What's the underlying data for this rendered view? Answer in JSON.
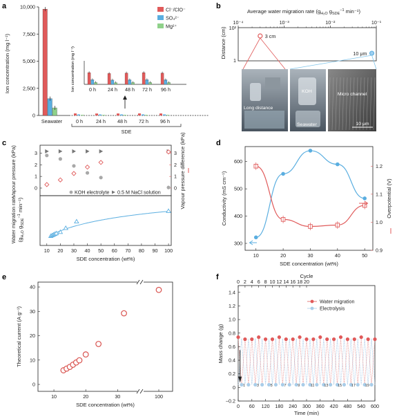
{
  "colors": {
    "red": "#e05a5a",
    "blue": "#5aaee0",
    "green": "#8fd18a",
    "gray": "#9a9a9a",
    "darkgray": "#6a6a6a"
  },
  "panels": {
    "a": {
      "label": "a"
    },
    "b": {
      "label": "b"
    },
    "c": {
      "label": "c"
    },
    "d": {
      "label": "d"
    },
    "e": {
      "label": "e"
    },
    "f": {
      "label": "f"
    }
  },
  "chart_data": [
    {
      "panel": "a",
      "type": "bar",
      "ylabel": "Ion concentration (mg l⁻¹)",
      "ylim": [
        0,
        10000
      ],
      "yticks": [
        "0",
        "2,500",
        "5,000",
        "7,500",
        "10,000"
      ],
      "categories": [
        "Seawater",
        "0 h",
        "24 h",
        "48 h",
        "72 h",
        "96 h"
      ],
      "group_label": "SDE",
      "legend": [
        "Cl⁻/ClO⁻",
        "SO₄²⁻",
        "Mg²⁺"
      ],
      "series": [
        {
          "name": "Cl⁻/ClO⁻",
          "values": [
            9800,
            150,
            140,
            145,
            150,
            145
          ]
        },
        {
          "name": "SO₄²⁻",
          "values": [
            1550,
            60,
            55,
            58,
            60,
            58
          ]
        },
        {
          "name": "Mg²⁺",
          "values": [
            700,
            25,
            22,
            24,
            25,
            23
          ]
        }
      ],
      "inset": {
        "ylabel": "Ion concentration (mg l⁻¹)",
        "categories": [
          "0 h",
          "24 h",
          "48 h",
          "72 h",
          "96 h"
        ]
      }
    },
    {
      "panel": "b",
      "type": "scatter",
      "top_axis_label": "Average water migration rate (g",
      "top_axis_sub": "H₂O",
      "top_axis_mid": " g",
      "top_axis_sub2": "SDE",
      "top_axis_sup": "−1",
      "top_axis_end": " min⁻¹)",
      "xticks": [
        "10⁻⁴",
        "10⁻³",
        "10⁻²",
        "10⁻¹"
      ],
      "ylabel": "Distance (cm)",
      "yticks": [
        "10²",
        "1"
      ],
      "points": [
        {
          "label": "3 cm",
          "x": 0.0003,
          "y": 3
        },
        {
          "label": "10 μm",
          "x": 0.08,
          "y": 0.001
        }
      ],
      "photo_labels": [
        "Long distance",
        "KOH",
        "Seawater",
        "Micro channel",
        "10 μm"
      ]
    },
    {
      "panel": "c",
      "type": "scatter",
      "xlabel": "SDE concentration (wt%)",
      "xticks": [
        "10",
        "20",
        "30",
        "40",
        "50",
        "60",
        "70",
        "80",
        "90",
        "100"
      ],
      "top": {
        "ylabel": "Vapour pressure (kPa)",
        "yticks": [
          "0",
          "1",
          "2",
          "3"
        ],
        "y2label": "Vapour pressure difference (kPa)",
        "y2ticks": [
          "0",
          "1",
          "2",
          "3"
        ],
        "legend": [
          "KOH electrolyte",
          "0.5 M NaCl solution"
        ],
        "series": [
          {
            "name": "KOH electrolyte",
            "x": [
              10,
              20,
              30,
              40,
              50,
              100
            ],
            "y": [
              2.8,
              2.5,
              1.9,
              1.3,
              0.9,
              0.05
            ]
          },
          {
            "name": "0.5 M NaCl solution",
            "x": [
              10,
              20,
              30,
              40,
              50,
              100
            ],
            "y": [
              3.15,
              3.15,
              3.15,
              3.15,
              3.15,
              3.15
            ]
          },
          {
            "name": "difference",
            "x": [
              10,
              20,
              30,
              40,
              50,
              100
            ],
            "y": [
              0.3,
              0.7,
              1.25,
              1.8,
              2.2,
              3.1
            ]
          }
        ]
      },
      "bottom": {
        "ylabel": "Water migration rate",
        "ylabel2": "(g",
        "ylabel_sub": "H₂O",
        "ylabel_mid": " g",
        "ylabel_sub2": "SDE",
        "ylabel_sup": "−1",
        "ylabel_end": " min⁻¹)",
        "series": [
          {
            "name": "water migration rate",
            "x": [
              13,
              14,
              15,
              16,
              17,
              20,
              24,
              32,
              100
            ],
            "y": [
              0.03,
              0.035,
              0.04,
              0.045,
              0.05,
              0.06,
              0.09,
              0.14,
              0.22
            ]
          }
        ]
      }
    },
    {
      "panel": "d",
      "type": "line",
      "xlabel": "SDE concentration (wt%)",
      "xticks": [
        "10",
        "20",
        "30",
        "40",
        "50"
      ],
      "ylabel": "Conductivity (mS cm⁻¹)",
      "yticks": [
        "300",
        "400",
        "500",
        "600"
      ],
      "ylim": [
        300,
        650
      ],
      "y2label": "Overpotential (V)",
      "y2ticks": [
        "0.9",
        "1.0",
        "1.1",
        "1.2"
      ],
      "y2lim": [
        0.9,
        1.25
      ],
      "series": [
        {
          "name": "Conductivity",
          "x": [
            10,
            20,
            30,
            40,
            50
          ],
          "y": [
            322,
            555,
            640,
            590,
            465
          ]
        },
        {
          "name": "Overpotential",
          "x": [
            10,
            20,
            30,
            40,
            50
          ],
          "y": [
            1.2,
            1.01,
            0.985,
            0.99,
            1.06
          ]
        }
      ]
    },
    {
      "panel": "e",
      "type": "scatter",
      "xlabel": "SDE concentration (wt%)",
      "xticks": [
        "10",
        "20",
        "30",
        "100"
      ],
      "ylabel": "Theoretical current (A g⁻¹)",
      "yticks": [
        "0",
        "10",
        "20",
        "30",
        "40"
      ],
      "ylim": [
        0,
        42
      ],
      "series": [
        {
          "name": "Theoretical current",
          "x": [
            13,
            14,
            15,
            16,
            17,
            18,
            20,
            24,
            32,
            100
          ],
          "y": [
            5.8,
            6.5,
            7.2,
            8.1,
            9.0,
            9.9,
            12.3,
            16.6,
            29.2,
            38.8
          ]
        }
      ]
    },
    {
      "panel": "f",
      "type": "line",
      "top_label": "Cycle",
      "top_ticks": [
        "0",
        "2",
        "4",
        "6",
        "8",
        "10",
        "12",
        "14",
        "16",
        "18",
        "20"
      ],
      "xlabel": "Time (min)",
      "xticks": [
        "0",
        "60",
        "120",
        "180",
        "240",
        "300",
        "360",
        "420",
        "480",
        "540",
        "600"
      ],
      "ylabel": "Mass change (g)",
      "yticks": [
        "−0.2",
        "0",
        "0.2",
        "0.4",
        "0.6",
        "0.8",
        "1.0",
        "1.2",
        "1.4"
      ],
      "ylim": [
        -0.2,
        1.5
      ],
      "legend": [
        "Water migration",
        "Electrolysis"
      ],
      "series": [
        {
          "name": "Water migration",
          "y_peak": 0.72
        },
        {
          "name": "Electrolysis",
          "y_low": 0.04
        }
      ],
      "cycle_labels": [
        "1",
        "3",
        "5",
        "7",
        "9",
        "11",
        "13",
        "15",
        "17",
        "19"
      ]
    }
  ]
}
